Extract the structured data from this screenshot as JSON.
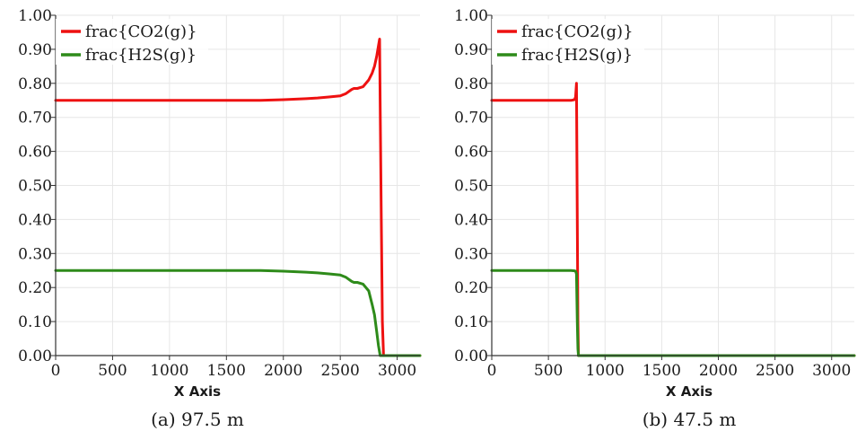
{
  "chart_data": [
    {
      "type": "line",
      "caption": "(a) 97.5 m",
      "xlabel": "X Axis",
      "ylabel": "",
      "xlim": [
        0,
        3200
      ],
      "ylim": [
        0,
        1
      ],
      "xticks": [
        "0",
        "500",
        "1000",
        "1500",
        "2000",
        "2500",
        "3000"
      ],
      "yticks": [
        "0.00",
        "0.10",
        "0.20",
        "0.30",
        "0.40",
        "0.50",
        "0.60",
        "0.70",
        "0.80",
        "0.90",
        "1.00"
      ],
      "grid": true,
      "legend_position": "top-left",
      "series": [
        {
          "name": "frac{CO2(g)}",
          "color": "#ee1111",
          "x": [
            0,
            500,
            1000,
            1500,
            1800,
            2000,
            2200,
            2300,
            2400,
            2500,
            2550,
            2600,
            2620,
            2650,
            2700,
            2750,
            2780,
            2800,
            2820,
            2835,
            2845,
            2850,
            2860,
            2870,
            2880,
            3200
          ],
          "y": [
            0.75,
            0.75,
            0.75,
            0.75,
            0.75,
            0.752,
            0.755,
            0.757,
            0.76,
            0.763,
            0.77,
            0.782,
            0.785,
            0.785,
            0.79,
            0.81,
            0.83,
            0.85,
            0.88,
            0.91,
            0.93,
            0.75,
            0.4,
            0.1,
            0.0,
            0.0
          ]
        },
        {
          "name": "frac{H2S(g)}",
          "color": "#2e8b1a",
          "x": [
            0,
            500,
            1000,
            1500,
            1800,
            2000,
            2200,
            2300,
            2400,
            2500,
            2550,
            2600,
            2620,
            2650,
            2700,
            2750,
            2780,
            2800,
            2820,
            2835,
            2845,
            2850,
            2860,
            3200
          ],
          "y": [
            0.25,
            0.25,
            0.25,
            0.25,
            0.25,
            0.248,
            0.245,
            0.243,
            0.24,
            0.237,
            0.23,
            0.218,
            0.215,
            0.215,
            0.21,
            0.19,
            0.15,
            0.12,
            0.07,
            0.03,
            0.01,
            0.0,
            0.0,
            0.0
          ]
        }
      ]
    },
    {
      "type": "line",
      "caption": "(b) 47.5 m",
      "xlabel": "X Axis",
      "ylabel": "",
      "xlim": [
        0,
        3200
      ],
      "ylim": [
        0,
        1
      ],
      "xticks": [
        "0",
        "500",
        "1000",
        "1500",
        "2000",
        "2500",
        "3000"
      ],
      "yticks": [
        "0.00",
        "0.10",
        "0.20",
        "0.30",
        "0.40",
        "0.50",
        "0.60",
        "0.70",
        "0.80",
        "0.90",
        "1.00"
      ],
      "grid": true,
      "legend_position": "top-left",
      "series": [
        {
          "name": "frac{CO2(g)}",
          "color": "#ee1111",
          "x": [
            0,
            300,
            600,
            700,
            730,
            740,
            748,
            755,
            760,
            765,
            780,
            800,
            3200
          ],
          "y": [
            0.75,
            0.75,
            0.75,
            0.75,
            0.752,
            0.76,
            0.8,
            0.4,
            0.1,
            0.0,
            0.0,
            0.0,
            0.0
          ]
        },
        {
          "name": "frac{H2S(g)}",
          "color": "#2e8b1a",
          "x": [
            0,
            300,
            600,
            700,
            730,
            740,
            748,
            755,
            760,
            765,
            780,
            3200
          ],
          "y": [
            0.25,
            0.25,
            0.25,
            0.25,
            0.249,
            0.248,
            0.24,
            0.1,
            0.02,
            0.0,
            0.0,
            0.0
          ]
        }
      ]
    }
  ]
}
